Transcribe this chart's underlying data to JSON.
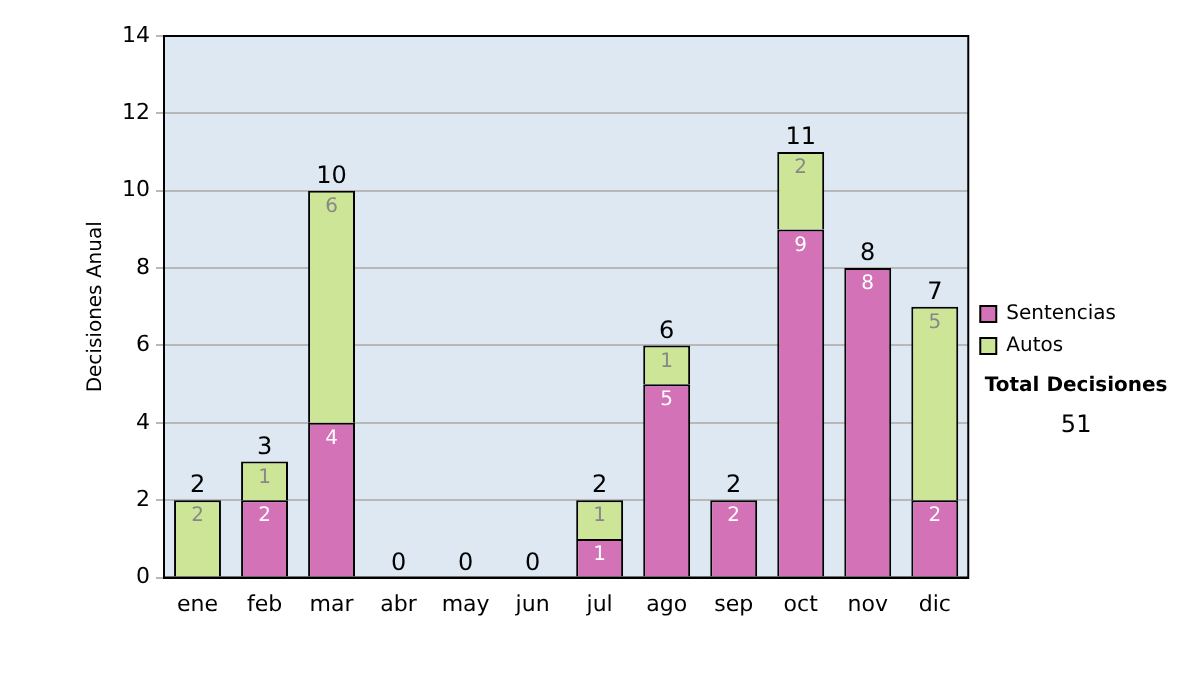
{
  "chart_data": {
    "type": "bar",
    "stacked": true,
    "ylabel": "Decisiones Anual",
    "categories": [
      "ene",
      "feb",
      "mar",
      "abr",
      "may",
      "jun",
      "jul",
      "ago",
      "sep",
      "oct",
      "nov",
      "dic"
    ],
    "series": [
      {
        "name": "Sentencias",
        "color": "#d472b8",
        "values": [
          0,
          2,
          4,
          0,
          0,
          0,
          1,
          5,
          2,
          9,
          8,
          2
        ],
        "value_labels": [
          null,
          "2",
          "4",
          null,
          null,
          null,
          "1",
          "5",
          "2",
          "9",
          "8",
          "2"
        ]
      },
      {
        "name": "Autos",
        "color": "#cde597",
        "values": [
          2,
          1,
          6,
          0,
          0,
          0,
          1,
          1,
          0,
          2,
          0,
          5
        ],
        "value_labels": [
          "2",
          "1",
          "6",
          null,
          null,
          null,
          "1",
          "1",
          null,
          "2",
          null,
          "5"
        ]
      }
    ],
    "totals": [
      "2",
      "3",
      "10",
      "0",
      "0",
      "0",
      "2",
      "6",
      "2",
      "11",
      "8",
      "7"
    ],
    "ylim": [
      0,
      14
    ],
    "yticks": [
      0,
      2,
      4,
      6,
      8,
      10,
      12,
      14
    ],
    "grid": "y",
    "legend": "right",
    "annotations": [
      "Total Decisiones",
      "51"
    ]
  }
}
